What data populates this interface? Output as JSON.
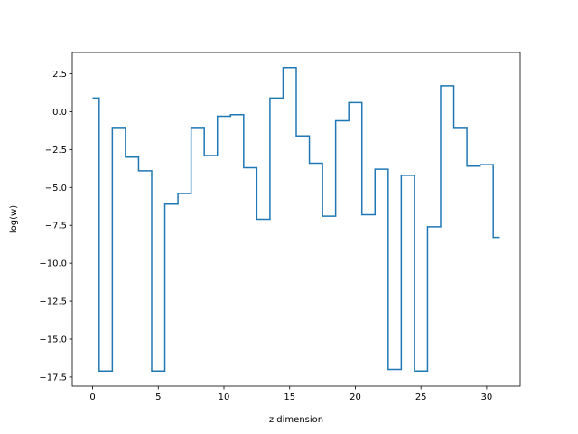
{
  "chart_data": {
    "type": "line",
    "drawstyle": "steps-mid",
    "title": "",
    "xlabel": "z dimension",
    "ylabel": "log(w)",
    "x": [
      0,
      1,
      2,
      3,
      4,
      5,
      6,
      7,
      8,
      9,
      10,
      11,
      12,
      13,
      14,
      15,
      16,
      17,
      18,
      19,
      20,
      21,
      22,
      23,
      24,
      25,
      26,
      27,
      28,
      29,
      30,
      31
    ],
    "series": [
      {
        "values": [
          0.9,
          -17.1,
          -1.1,
          -3.0,
          -3.9,
          -17.1,
          -6.1,
          -5.4,
          -1.1,
          -2.9,
          -0.3,
          -0.2,
          -3.7,
          -7.1,
          0.9,
          2.9,
          -1.6,
          -3.4,
          -6.9,
          -0.6,
          0.6,
          -6.8,
          -3.8,
          -17.0,
          -4.2,
          -17.1,
          -7.6,
          1.7,
          -1.1,
          -3.6,
          -3.5,
          -8.3
        ],
        "color": "#1f77b4"
      }
    ],
    "xlim": [
      -1.55,
      32.55
    ],
    "ylim": [
      -18.1,
      3.9
    ],
    "xticks": [
      0,
      5,
      10,
      15,
      20,
      25,
      30
    ],
    "xtick_labels": [
      "0",
      "5",
      "10",
      "15",
      "20",
      "25",
      "30"
    ],
    "yticks": [
      2.5,
      0.0,
      -2.5,
      -5.0,
      -7.5,
      -10.0,
      -12.5,
      -15.0,
      -17.5
    ],
    "ytick_labels": [
      "2.5",
      "0.0",
      "−2.5",
      "−5.0",
      "−7.5",
      "−10.0",
      "−12.5",
      "−15.0",
      "−17.5"
    ],
    "grid": false,
    "legend": "none"
  }
}
